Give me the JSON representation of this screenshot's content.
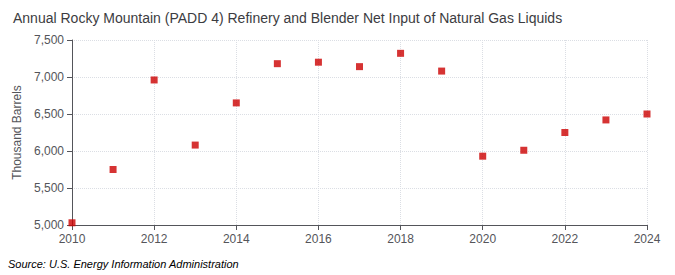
{
  "chart_data": {
    "type": "scatter",
    "title": "Annual Rocky Mountain (PADD 4) Refinery and Blender Net Input of Natural Gas Liquids",
    "y_label": "Thousand Barrels",
    "annotation": "Source: U.S. Energy Information Administration",
    "x": [
      2010,
      2011,
      2012,
      2013,
      2014,
      2015,
      2016,
      2017,
      2018,
      2019,
      2020,
      2021,
      2022,
      2023,
      2024
    ],
    "values": [
      5030,
      5750,
      6960,
      6080,
      6650,
      7180,
      7200,
      7140,
      7320,
      7080,
      5930,
      6010,
      6250,
      6420,
      6500
    ],
    "color": "#cc0000",
    "marker": "square",
    "xlim": [
      2010,
      2024
    ],
    "xticks": [
      2010,
      2012,
      2014,
      2016,
      2018,
      2020,
      2022,
      2024
    ],
    "ylim": [
      5000,
      7500
    ],
    "yticks": [
      {
        "value": 5000,
        "label": "5,000"
      },
      {
        "value": 5500,
        "label": "5,500"
      },
      {
        "value": 6000,
        "label": "6,000"
      },
      {
        "value": 6500,
        "label": "6,500"
      },
      {
        "value": 7000,
        "label": "7,000"
      },
      {
        "value": 7500,
        "label": "7,500"
      }
    ],
    "grid": true
  }
}
